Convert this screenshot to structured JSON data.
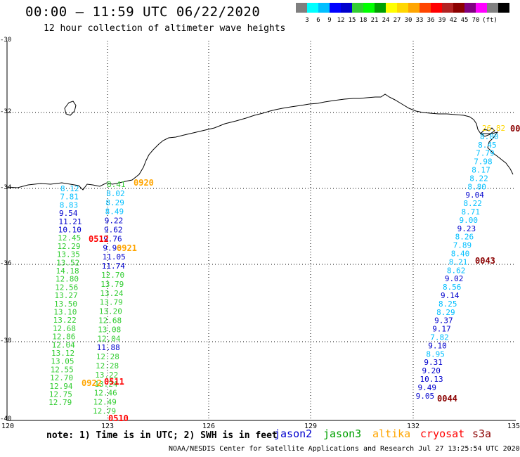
{
  "header": {
    "title": "00:00 – 11:59 UTC 06/22/2020",
    "subtitle": "12 hour collection of altimeter wave heights"
  },
  "legend": {
    "colors": [
      "#7f7f7f",
      "#00ffff",
      "#00bfff",
      "#0000ff",
      "#0000cd",
      "#32cd32",
      "#00ff00",
      "#00a000",
      "#ffff00",
      "#ffd700",
      "#ffa500",
      "#ff4500",
      "#ff0000",
      "#b22222",
      "#8b0000",
      "#800080",
      "#ff00ff",
      "#808080",
      "#000000"
    ],
    "labels": [
      "3",
      "6",
      "9",
      "12",
      "15",
      "18",
      "21",
      "24",
      "27",
      "30",
      "33",
      "36",
      "39",
      "42",
      "45",
      "70",
      "(ft)"
    ]
  },
  "axes": {
    "y_labels": [
      "-30",
      "-32",
      "-34",
      "-36",
      "-38",
      "-40"
    ],
    "x_labels": [
      "120",
      "123",
      "126",
      "129",
      "132",
      "135"
    ]
  },
  "passes": [
    {
      "label": "0920",
      "color": "#ffa500"
    },
    {
      "label": "0921",
      "color": "#ffa500"
    },
    {
      "label": "0512",
      "color": "#ff0000"
    },
    {
      "label": "0922",
      "color": "#ffa500"
    },
    {
      "label": "0511",
      "color": "#ff0000"
    },
    {
      "label": "0510",
      "color": "#ff0000"
    },
    {
      "label": "0043",
      "color": "#8b0000"
    },
    {
      "label": "0044",
      "color": "#8b0000"
    },
    {
      "label": "00",
      "color": "#8b0000"
    }
  ],
  "track_west_a": [
    {
      "v": "8.12",
      "c": "#00bfff"
    },
    {
      "v": "7.81",
      "c": "#00bfff"
    },
    {
      "v": "8.83",
      "c": "#00bfff"
    },
    {
      "v": "9.54",
      "c": "#0000cd"
    },
    {
      "v": "11.21",
      "c": "#0000cd"
    },
    {
      "v": "10.10",
      "c": "#0000cd"
    },
    {
      "v": "12.45",
      "c": "#32cd32"
    },
    {
      "v": "12.29",
      "c": "#32cd32"
    },
    {
      "v": "13.35",
      "c": "#32cd32"
    },
    {
      "v": "13.52",
      "c": "#32cd32"
    },
    {
      "v": "14.18",
      "c": "#32cd32"
    },
    {
      "v": "12.80",
      "c": "#32cd32"
    },
    {
      "v": "12.56",
      "c": "#32cd32"
    },
    {
      "v": "13.27",
      "c": "#32cd32"
    },
    {
      "v": "13.50",
      "c": "#32cd32"
    },
    {
      "v": "13.10",
      "c": "#32cd32"
    },
    {
      "v": "13.22",
      "c": "#32cd32"
    },
    {
      "v": "12.68",
      "c": "#32cd32"
    },
    {
      "v": "12.86",
      "c": "#32cd32"
    },
    {
      "v": "12.04",
      "c": "#32cd32"
    },
    {
      "v": "13.12",
      "c": "#32cd32"
    },
    {
      "v": "13.05",
      "c": "#32cd32"
    },
    {
      "v": "12.55",
      "c": "#32cd32"
    },
    {
      "v": "12.70",
      "c": "#32cd32"
    },
    {
      "v": "12.94",
      "c": "#32cd32"
    },
    {
      "v": "12.75",
      "c": "#32cd32"
    },
    {
      "v": "12.79",
      "c": "#32cd32"
    }
  ],
  "track_west_b": [
    {
      "v": "8.41",
      "c": "#32cd32"
    },
    {
      "v": "8.02",
      "c": "#00bfff"
    },
    {
      "v": "8.29",
      "c": "#00bfff"
    },
    {
      "v": "8.49",
      "c": "#00bfff"
    },
    {
      "v": "9.22",
      "c": "#0000cd"
    },
    {
      "v": "9.62",
      "c": "#0000cd"
    },
    {
      "v": "9.76",
      "c": "#0000cd"
    },
    {
      "v": "9.96",
      "c": "#0000cd"
    },
    {
      "v": "11.05",
      "c": "#0000cd"
    },
    {
      "v": "11.74",
      "c": "#0000cd"
    },
    {
      "v": "12.70",
      "c": "#32cd32"
    },
    {
      "v": "13.79",
      "c": "#32cd32"
    },
    {
      "v": "13.24",
      "c": "#32cd32"
    },
    {
      "v": "13.79",
      "c": "#32cd32"
    },
    {
      "v": "13.20",
      "c": "#32cd32"
    },
    {
      "v": "12.68",
      "c": "#32cd32"
    },
    {
      "v": "13.08",
      "c": "#32cd32"
    },
    {
      "v": "12.04",
      "c": "#32cd32"
    },
    {
      "v": "11.88",
      "c": "#0000cd"
    },
    {
      "v": "12.28",
      "c": "#32cd32"
    },
    {
      "v": "12.28",
      "c": "#32cd32"
    },
    {
      "v": "13.22",
      "c": "#32cd32"
    },
    {
      "v": "13.24",
      "c": "#32cd32"
    },
    {
      "v": "12.46",
      "c": "#32cd32"
    },
    {
      "v": "12.49",
      "c": "#32cd32"
    },
    {
      "v": "12.79",
      "c": "#32cd32"
    }
  ],
  "track_east": [
    {
      "v": "26.82",
      "c": "#ffd700"
    },
    {
      "v": "8.00",
      "c": "#00bfff"
    },
    {
      "v": "8.45",
      "c": "#00bfff"
    },
    {
      "v": "7.79",
      "c": "#00bfff"
    },
    {
      "v": "7.98",
      "c": "#00bfff"
    },
    {
      "v": "8.17",
      "c": "#00bfff"
    },
    {
      "v": "8.22",
      "c": "#00bfff"
    },
    {
      "v": "8.80",
      "c": "#00bfff"
    },
    {
      "v": "9.04",
      "c": "#0000cd"
    },
    {
      "v": "8.22",
      "c": "#00bfff"
    },
    {
      "v": "8.71",
      "c": "#00bfff"
    },
    {
      "v": "9.00",
      "c": "#00bfff"
    },
    {
      "v": "9.23",
      "c": "#0000cd"
    },
    {
      "v": "8.26",
      "c": "#00bfff"
    },
    {
      "v": "7.89",
      "c": "#00bfff"
    },
    {
      "v": "8.40",
      "c": "#00bfff"
    },
    {
      "v": "8.21",
      "c": "#00bfff"
    },
    {
      "v": "8.62",
      "c": "#00bfff"
    },
    {
      "v": "9.02",
      "c": "#0000cd"
    },
    {
      "v": "8.56",
      "c": "#00bfff"
    },
    {
      "v": "9.14",
      "c": "#0000cd"
    },
    {
      "v": "8.25",
      "c": "#00bfff"
    },
    {
      "v": "8.29",
      "c": "#00bfff"
    },
    {
      "v": "9.37",
      "c": "#0000cd"
    },
    {
      "v": "9.17",
      "c": "#0000cd"
    },
    {
      "v": "7.82",
      "c": "#00bfff"
    },
    {
      "v": "9.10",
      "c": "#0000cd"
    },
    {
      "v": "8.95",
      "c": "#00bfff"
    },
    {
      "v": "9.31",
      "c": "#0000cd"
    },
    {
      "v": "9.20",
      "c": "#0000cd"
    },
    {
      "v": "10.13",
      "c": "#0000cd"
    },
    {
      "v": "9.49",
      "c": "#0000cd"
    },
    {
      "v": "9.05",
      "c": "#0000cd"
    }
  ],
  "footer": {
    "note": "note: 1) Time is in UTC; 2) SWH is in feet",
    "satellites": [
      {
        "name": "jason2",
        "color": "#0000cd"
      },
      {
        "name": "jason3",
        "color": "#00a000"
      },
      {
        "name": "altika",
        "color": "#ffa500"
      },
      {
        "name": "cryosat",
        "color": "#ff0000"
      },
      {
        "name": "s3a",
        "color": "#8b0000"
      }
    ],
    "credit": "NOAA/NESDIS Center for Satellite Applications and Research    Jul 27 13:25:54 UTC 2020"
  }
}
